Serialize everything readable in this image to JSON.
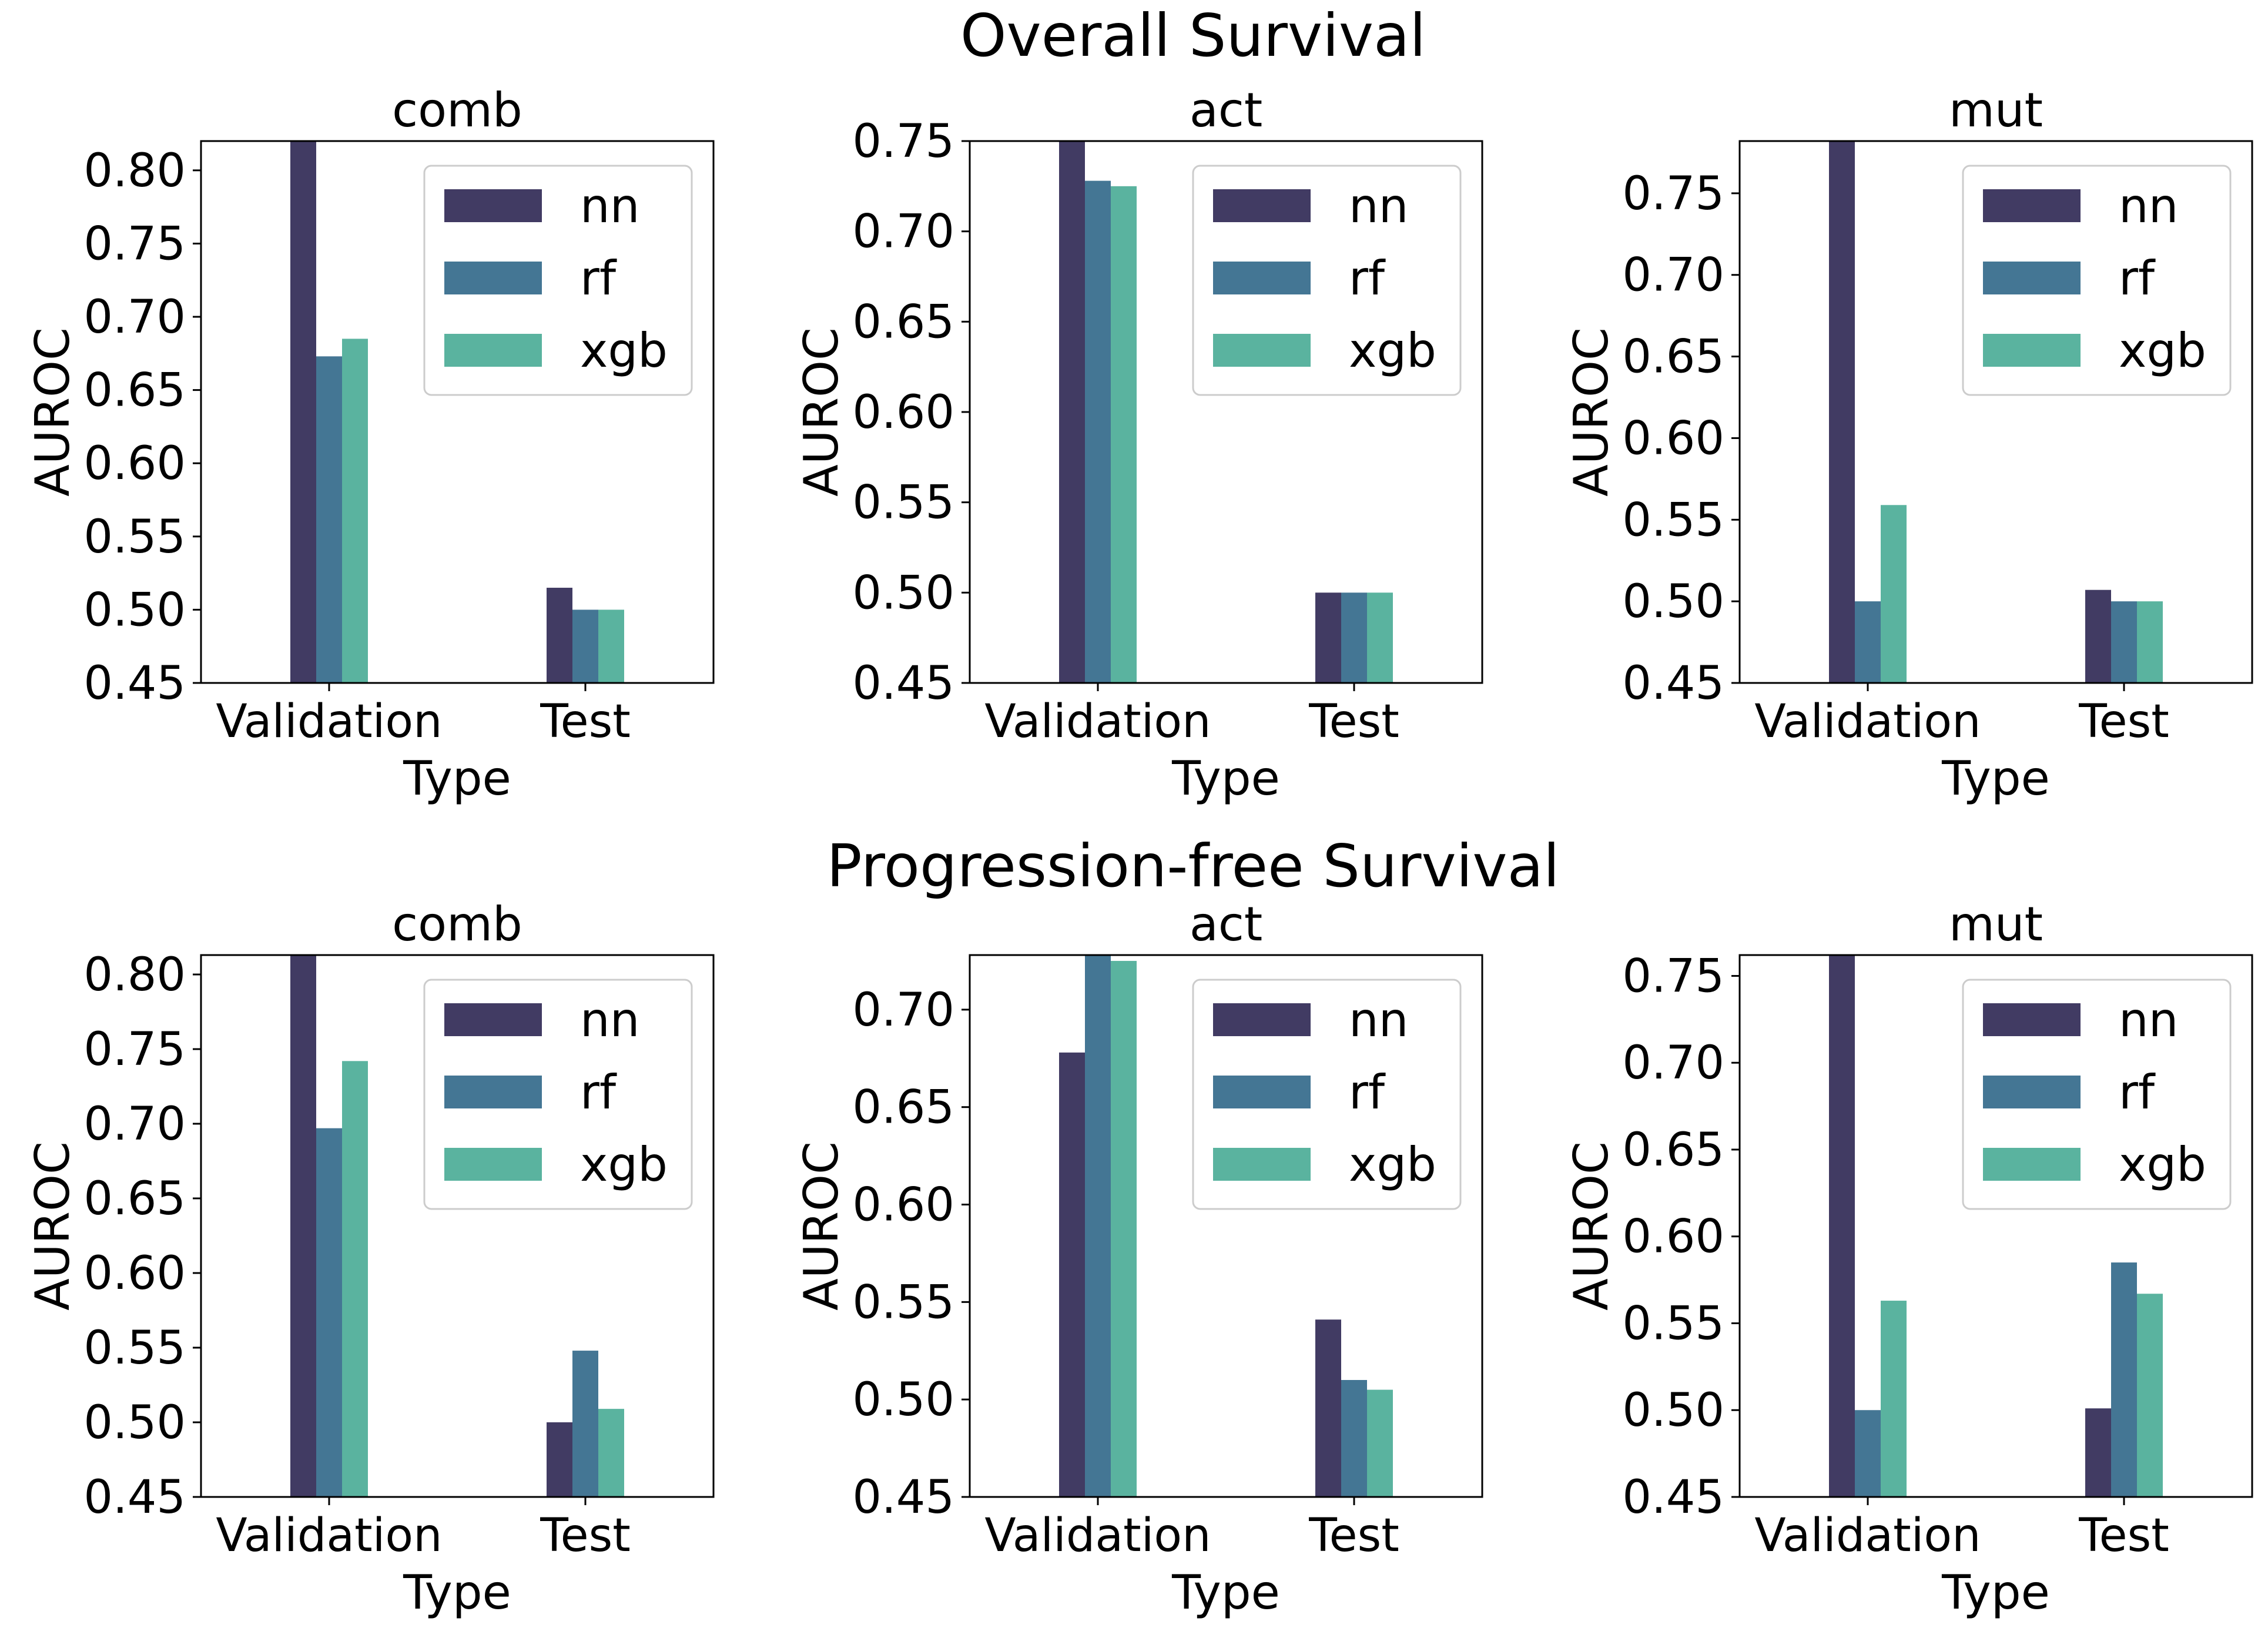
{
  "figure": {
    "row_titles": [
      "Overall Survival",
      "Progression-free Survival"
    ],
    "legend_entries": [
      "nn",
      "rf",
      "xgb"
    ],
    "colors": {
      "nn": "#413b63",
      "rf": "#447694",
      "xgb": "#5ab39f"
    },
    "xlabel": "Type",
    "ylabel": "AUROC"
  },
  "chart_data": [
    {
      "type": "bar",
      "row": "Overall Survival",
      "title": "comb",
      "categories": [
        "Validation",
        "Test"
      ],
      "series": [
        {
          "name": "nn",
          "values": [
            0.82,
            0.515
          ]
        },
        {
          "name": "rf",
          "values": [
            0.673,
            0.5
          ]
        },
        {
          "name": "xgb",
          "values": [
            0.685,
            0.5
          ]
        }
      ],
      "xlabel": "Type",
      "ylabel": "AUROC",
      "ylim": [
        0.45,
        0.82
      ],
      "yticks": [
        "0.45",
        "0.50",
        "0.55",
        "0.60",
        "0.65",
        "0.70",
        "0.75",
        "0.80"
      ],
      "grid": false,
      "legend": "top-right"
    },
    {
      "type": "bar",
      "row": "Overall Survival",
      "title": "act",
      "categories": [
        "Validation",
        "Test"
      ],
      "series": [
        {
          "name": "nn",
          "values": [
            0.75,
            0.5
          ]
        },
        {
          "name": "rf",
          "values": [
            0.728,
            0.5
          ]
        },
        {
          "name": "xgb",
          "values": [
            0.725,
            0.5
          ]
        }
      ],
      "xlabel": "Type",
      "ylabel": "AUROC",
      "ylim": [
        0.45,
        0.75
      ],
      "yticks": [
        "0.45",
        "0.50",
        "0.55",
        "0.60",
        "0.65",
        "0.70",
        "0.75"
      ],
      "grid": false,
      "legend": "top-right"
    },
    {
      "type": "bar",
      "row": "Overall Survival",
      "title": "mut",
      "categories": [
        "Validation",
        "Test"
      ],
      "series": [
        {
          "name": "nn",
          "values": [
            0.782,
            0.507
          ]
        },
        {
          "name": "rf",
          "values": [
            0.5,
            0.5
          ]
        },
        {
          "name": "xgb",
          "values": [
            0.559,
            0.5
          ]
        }
      ],
      "xlabel": "Type",
      "ylabel": "AUROC",
      "ylim": [
        0.45,
        0.782
      ],
      "yticks": [
        "0.45",
        "0.50",
        "0.55",
        "0.60",
        "0.65",
        "0.70",
        "0.75"
      ],
      "grid": false,
      "legend": "top-right"
    },
    {
      "type": "bar",
      "row": "Progression-free Survival",
      "title": "comb",
      "categories": [
        "Validation",
        "Test"
      ],
      "series": [
        {
          "name": "nn",
          "values": [
            0.813,
            0.5
          ]
        },
        {
          "name": "rf",
          "values": [
            0.697,
            0.548
          ]
        },
        {
          "name": "xgb",
          "values": [
            0.742,
            0.509
          ]
        }
      ],
      "xlabel": "Type",
      "ylabel": "AUROC",
      "ylim": [
        0.45,
        0.813
      ],
      "yticks": [
        "0.45",
        "0.50",
        "0.55",
        "0.60",
        "0.65",
        "0.70",
        "0.75",
        "0.80"
      ],
      "grid": false,
      "legend": "top-right"
    },
    {
      "type": "bar",
      "row": "Progression-free Survival",
      "title": "act",
      "categories": [
        "Validation",
        "Test"
      ],
      "series": [
        {
          "name": "nn",
          "values": [
            0.678,
            0.541
          ]
        },
        {
          "name": "rf",
          "values": [
            0.728,
            0.51
          ]
        },
        {
          "name": "xgb",
          "values": [
            0.725,
            0.505
          ]
        }
      ],
      "xlabel": "Type",
      "ylabel": "AUROC",
      "ylim": [
        0.45,
        0.728
      ],
      "yticks": [
        "0.45",
        "0.50",
        "0.55",
        "0.60",
        "0.65",
        "0.70"
      ],
      "grid": false,
      "legend": "top-right"
    },
    {
      "type": "bar",
      "row": "Progression-free Survival",
      "title": "mut",
      "categories": [
        "Validation",
        "Test"
      ],
      "series": [
        {
          "name": "nn",
          "values": [
            0.762,
            0.501
          ]
        },
        {
          "name": "rf",
          "values": [
            0.5,
            0.585
          ]
        },
        {
          "name": "xgb",
          "values": [
            0.563,
            0.567
          ]
        }
      ],
      "xlabel": "Type",
      "ylabel": "AUROC",
      "ylim": [
        0.45,
        0.762
      ],
      "yticks": [
        "0.45",
        "0.50",
        "0.55",
        "0.60",
        "0.65",
        "0.70",
        "0.75"
      ],
      "grid": false,
      "legend": "top-right"
    }
  ]
}
